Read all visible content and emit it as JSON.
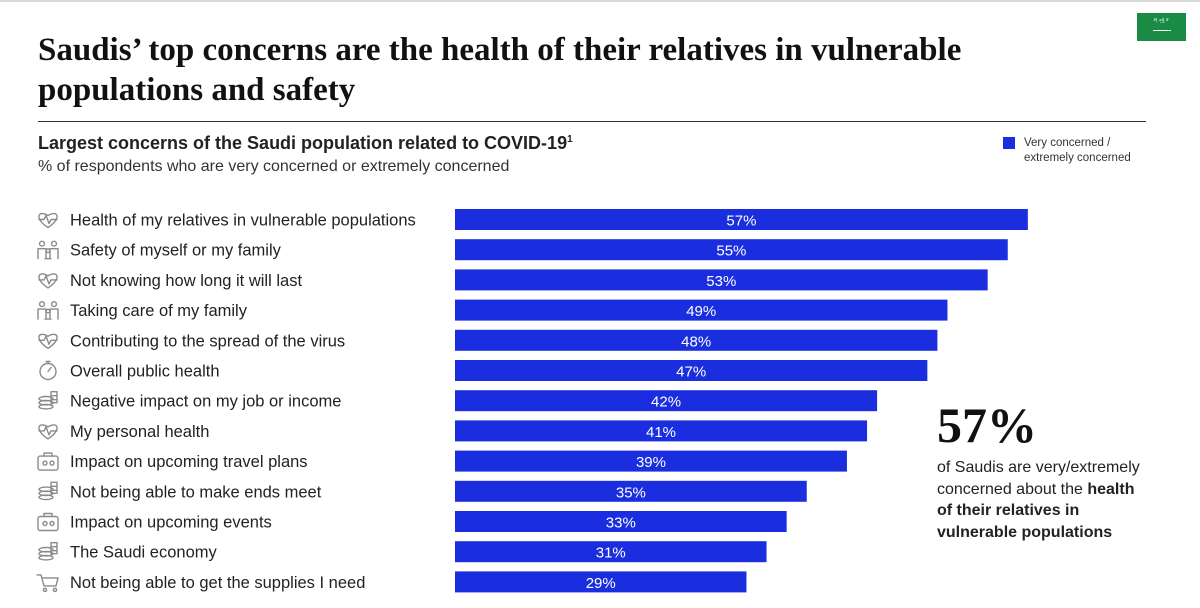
{
  "header": {
    "title": "Saudis’ top concerns are the health of their relatives in vulnerable populations and safety",
    "flag_text": "لا إله إلا الله"
  },
  "chart_data": {
    "type": "bar",
    "orientation": "horizontal",
    "title": "Largest concerns of the Saudi population related to COVID-19",
    "title_footnote": "1",
    "subtitle": "% of respondents who are very concerned or extremely concerned",
    "legend": [
      "Very concerned / extremely concerned"
    ],
    "xlim": [
      0,
      60
    ],
    "categories": [
      "Health of my relatives in vulnerable populations",
      "Safety of myself or my family",
      "Not knowing how long it will last",
      "Taking care of my family",
      "Contributing to the spread of the virus",
      "Overall public health",
      "Negative impact on my job or income",
      "My personal health",
      "Impact on upcoming travel plans",
      "Not being able to make ends meet",
      "Impact on upcoming events",
      "The Saudi economy",
      "Not being able to get the supplies I need"
    ],
    "icons": [
      "heart-pulse-icon",
      "family-icon",
      "heart-pulse-icon",
      "family-icon",
      "heart-pulse-icon",
      "stopwatch-icon",
      "coins-icon",
      "heart-pulse-icon",
      "luggage-icon",
      "coins-icon",
      "luggage-icon",
      "coins-icon",
      "cart-icon"
    ],
    "values": [
      57,
      55,
      53,
      49,
      48,
      47,
      42,
      41,
      39,
      35,
      33,
      31,
      29
    ],
    "value_labels": [
      "57%",
      "55%",
      "53%",
      "49%",
      "48%",
      "47%",
      "42%",
      "41%",
      "39%",
      "35%",
      "33%",
      "31%",
      "29%"
    ]
  },
  "callout": {
    "big_number": "57%",
    "text_lead": "of Saudis are very/extremely concerned about the ",
    "text_bold": "health of their relatives in vulnerable populations"
  },
  "colors": {
    "bar": "#1a2ee0",
    "flag": "#1a8b44",
    "icon_stroke": "#8a8a8a",
    "bar_label": "#ffffff"
  }
}
